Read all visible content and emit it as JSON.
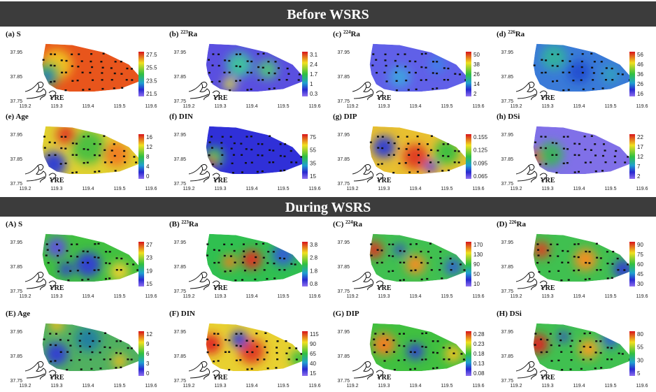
{
  "xticks": [
    "119.2",
    "119.3",
    "119.4",
    "119.5",
    "119.6"
  ],
  "yticks": [
    "37.75",
    "37.85",
    "37.95"
  ],
  "yre": "YRE",
  "sections": [
    {
      "title": "Before WSRS",
      "panels": [
        {
          "prefix": "(a)",
          "sup": "",
          "name": "S",
          "colorbar": [
            "27.5",
            "25.5",
            "23.5",
            "21.5"
          ]
        },
        {
          "prefix": "(b)",
          "sup": "223",
          "name": "Ra",
          "colorbar": [
            "3.1",
            "2.4",
            "1.7",
            "1",
            "0.3"
          ]
        },
        {
          "prefix": "(c)",
          "sup": "224",
          "name": "Ra",
          "colorbar": [
            "50",
            "38",
            "26",
            "14",
            "2"
          ]
        },
        {
          "prefix": "(d)",
          "sup": "226",
          "name": "Ra",
          "colorbar": [
            "56",
            "46",
            "36",
            "26",
            "16"
          ]
        },
        {
          "prefix": "(e)",
          "sup": "",
          "name": "Age",
          "colorbar": [
            "16",
            "12",
            "8",
            "4",
            "0"
          ]
        },
        {
          "prefix": "(f)",
          "sup": "",
          "name": "DIN",
          "colorbar": [
            "75",
            "55",
            "35",
            "15"
          ]
        },
        {
          "prefix": "(g)",
          "sup": "",
          "name": "DIP",
          "colorbar": [
            "0.155",
            "0.125",
            "0.095",
            "0.065"
          ]
        },
        {
          "prefix": "(h)",
          "sup": "",
          "name": "DSi",
          "colorbar": [
            "22",
            "17",
            "12",
            "7",
            "2"
          ]
        }
      ]
    },
    {
      "title": "During WSRS",
      "panels": [
        {
          "prefix": "(A)",
          "sup": "",
          "name": "S",
          "colorbar": [
            "27",
            "23",
            "19",
            "15"
          ]
        },
        {
          "prefix": "(B)",
          "sup": "223",
          "name": "Ra",
          "colorbar": [
            "3.8",
            "2.8",
            "1.8",
            "0.8"
          ]
        },
        {
          "prefix": "(C)",
          "sup": "224",
          "name": "Ra",
          "colorbar": [
            "170",
            "130",
            "90",
            "50",
            "10"
          ]
        },
        {
          "prefix": "(D)",
          "sup": "226",
          "name": "Ra",
          "colorbar": [
            "90",
            "75",
            "60",
            "45",
            "30"
          ]
        },
        {
          "prefix": "(E)",
          "sup": "",
          "name": "Age",
          "colorbar": [
            "12",
            "9",
            "6",
            "3",
            "0"
          ]
        },
        {
          "prefix": "(F)",
          "sup": "",
          "name": "DIN",
          "colorbar": [
            "115",
            "90",
            "65",
            "40",
            "15"
          ]
        },
        {
          "prefix": "(G)",
          "sup": "",
          "name": "DIP",
          "colorbar": [
            "0.28",
            "0.23",
            "0.18",
            "0.13",
            "0.08"
          ]
        },
        {
          "prefix": "(H)",
          "sup": "",
          "name": "DSi",
          "colorbar": [
            "80",
            "55",
            "30",
            "5"
          ]
        }
      ]
    }
  ]
}
